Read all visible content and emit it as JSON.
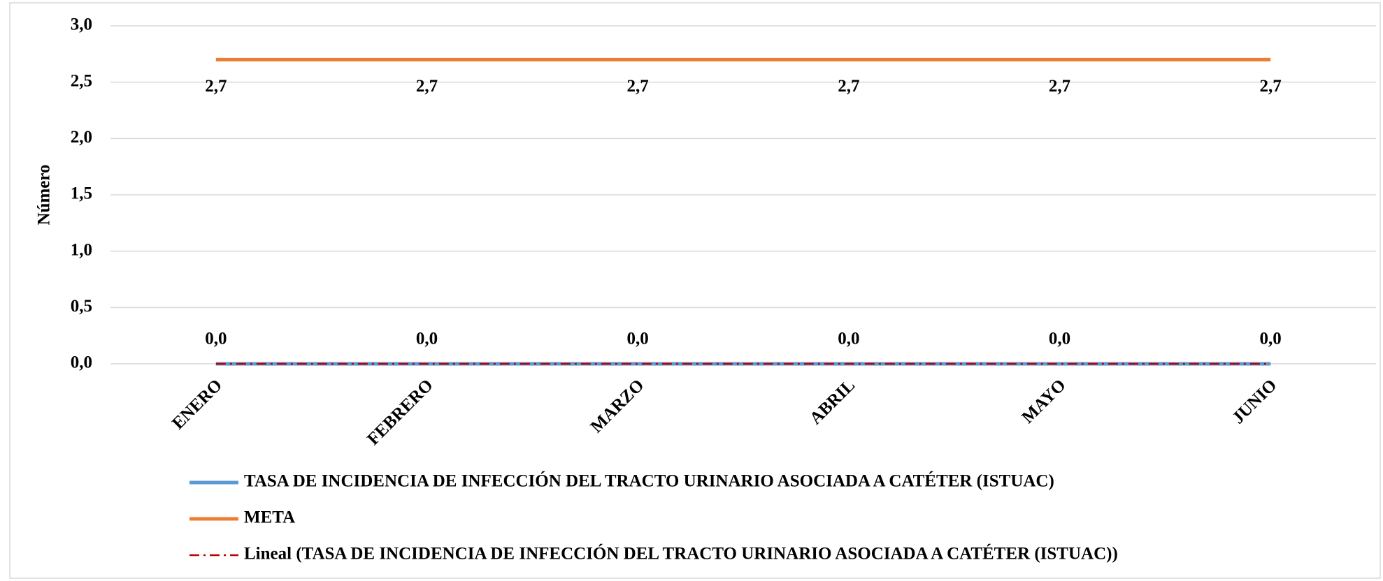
{
  "chart_data": {
    "type": "line",
    "ylabel": "Número",
    "categories": [
      "ENERO",
      "FEBRERO",
      "MARZO",
      "ABRIL",
      "MAYO",
      "JUNIO"
    ],
    "ylim": [
      0,
      3
    ],
    "yticks": [
      {
        "value": 0,
        "label": "0,0"
      },
      {
        "value": 0.5,
        "label": "0,5"
      },
      {
        "value": 1,
        "label": "1,0"
      },
      {
        "value": 1.5,
        "label": "1,5"
      },
      {
        "value": 2,
        "label": "2,0"
      },
      {
        "value": 2.5,
        "label": "2,5"
      },
      {
        "value": 3,
        "label": "3,0"
      }
    ],
    "grid": true,
    "legend": "bottom",
    "series": [
      {
        "name": "TASA DE INCIDENCIA DE INFECCIÓN DEL TRACTO URINARIO ASOCIADA A CATÉTER (ISTUAC)",
        "color": "#5b9bd5",
        "values": [
          0,
          0,
          0,
          0,
          0,
          0
        ],
        "value_labels": [
          "0,0",
          "0,0",
          "0,0",
          "0,0",
          "0,0",
          "0,0"
        ],
        "label_position": "above"
      },
      {
        "name": "META",
        "color": "#ed7d31",
        "values": [
          2.7,
          2.7,
          2.7,
          2.7,
          2.7,
          2.7
        ],
        "value_labels": [
          "2,7",
          "2,7",
          "2,7",
          "2,7",
          "2,7",
          "2,7"
        ],
        "label_position": "below"
      },
      {
        "name": "Lineal (TASA DE INCIDENCIA DE INFECCIÓN DEL TRACTO URINARIO ASOCIADA A CATÉTER (ISTUAC))",
        "color": "#c00000",
        "values": [
          0,
          0,
          0,
          0,
          0,
          0
        ],
        "dash": "dash-dot"
      }
    ]
  }
}
